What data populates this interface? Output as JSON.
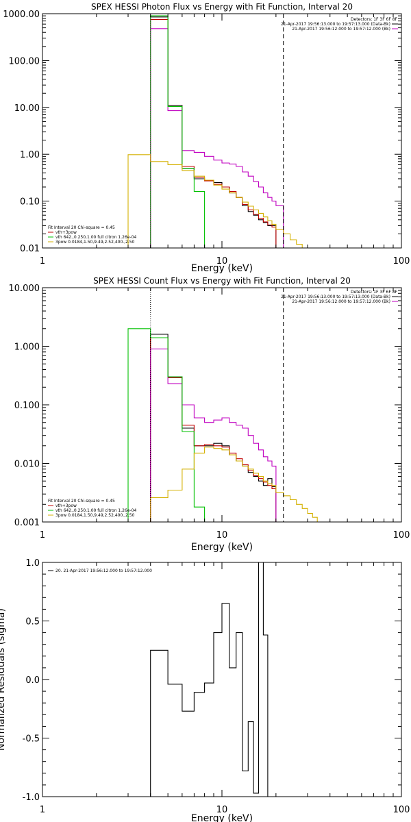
{
  "chart_data": [
    {
      "type": "line",
      "title": "SPEX HESSI Photon Flux vs Energy with Fit Function, Interval 20",
      "xlabel": "Energy (keV)",
      "ylabel": "",
      "xscale": "log",
      "yscale": "log",
      "xlim": [
        1,
        100
      ],
      "ylim": [
        0.01,
        1000
      ],
      "x_ticks": [
        1,
        10,
        100
      ],
      "x_tick_labels": [
        "1",
        "10",
        "100"
      ],
      "y_ticks": [
        0.01,
        0.1,
        1,
        10,
        100,
        1000
      ],
      "y_tick_labels": [
        "0.01",
        "0.10",
        "1.00",
        "10.00",
        "100.00",
        "1000.00"
      ],
      "info_text": [
        "Detectors: 1F 3F 6F 8F",
        "21-Apr-2017 19:56:13.000 to 19:57:13.000 (Data-Bk)",
        "21-Apr-2017 19:56:12.000 to 19:57:12.000 (Bk)"
      ],
      "legend_text": [
        "Fit Interval 20   Chi-square = 0.45",
        "vth+3pow",
        "vth 642.,0.250,1.00  full citron 1.26e-04",
        "3pow 0.0184,1.50,9.49,2.52,400.,2.50"
      ],
      "bin_edges": [
        3.0,
        4.0,
        5.0,
        6.0,
        7.0,
        8.0,
        9.0,
        10.0,
        11.0,
        12.0,
        13.0,
        14.0,
        15.0,
        16.0,
        17.0,
        18.0,
        19.0,
        20.0,
        22.0,
        24.0,
        26.0,
        28.0,
        30.0
      ],
      "vlines": [
        {
          "x": 4.0,
          "color": "#c000c0",
          "style": "dotted"
        },
        {
          "x": 22.0,
          "color": "#000000",
          "style": "dashed"
        }
      ],
      "series": [
        {
          "color": "#000000",
          "values": [
            null,
            850,
            11,
            0.5,
            0.3,
            0.28,
            0.25,
            0.2,
            0.15,
            0.12,
            0.08,
            0.06,
            0.05,
            0.04,
            0.035,
            0.03,
            0.03,
            null,
            null,
            null,
            null,
            null
          ]
        },
        {
          "color": "#c00000",
          "values": [
            null,
            750,
            10.5,
            0.55,
            0.32,
            0.27,
            0.23,
            0.2,
            0.16,
            0.12,
            0.085,
            0.065,
            0.052,
            0.043,
            0.036,
            0.031,
            0.028,
            null,
            null,
            null,
            null,
            null
          ]
        },
        {
          "color": "#c000c0",
          "values": [
            null,
            480,
            8.5,
            1.2,
            1.1,
            0.9,
            0.75,
            0.65,
            0.62,
            0.55,
            0.42,
            0.34,
            0.26,
            0.2,
            0.15,
            0.12,
            0.1,
            0.08,
            null,
            null,
            null,
            null
          ]
        },
        {
          "color": "#00c000",
          "values": [
            null,
            900,
            10.5,
            0.5,
            0.16,
            null,
            null,
            null,
            null,
            null,
            null,
            null,
            null,
            null,
            null,
            null,
            null,
            null,
            null,
            null,
            null,
            null
          ]
        },
        {
          "color": "#d4b000",
          "values": [
            0.98,
            0.7,
            0.6,
            0.45,
            0.34,
            0.28,
            0.22,
            0.18,
            0.15,
            0.12,
            0.095,
            0.078,
            0.065,
            0.055,
            0.046,
            0.038,
            0.032,
            0.025,
            0.02,
            0.015,
            0.012,
            0.01
          ]
        }
      ]
    },
    {
      "type": "line",
      "title": "SPEX HESSI Count Flux vs Energy with Fit Function, Interval 20",
      "xlabel": "Energy (keV)",
      "ylabel": "",
      "xscale": "log",
      "yscale": "log",
      "xlim": [
        1,
        100
      ],
      "ylim": [
        0.001,
        10
      ],
      "x_ticks": [
        1,
        10,
        100
      ],
      "x_tick_labels": [
        "1",
        "10",
        "100"
      ],
      "y_ticks": [
        0.001,
        0.01,
        0.1,
        1,
        10
      ],
      "y_tick_labels": [
        "0.001",
        "0.010",
        "0.100",
        "1.000",
        "10.000"
      ],
      "info_text": [
        "Detectors: 1F 3F 6F 8F",
        "21-Apr-2017 19:56:13.000 to 19:57:13.000 (Data-Bk)",
        "21-Apr-2017 19:56:12.000 to 19:57:12.000 (Bk)"
      ],
      "legend_text": [
        "Fit Interval 20   Chi-square = 0.45",
        "vth+3pow",
        "vth 642.,0.250,1.00  full citron 1.26e-04",
        "3pow 0.0184,1.50,9.49,2.52,400.,2.50"
      ],
      "bin_edges": [
        3.0,
        4.0,
        5.0,
        6.0,
        7.0,
        8.0,
        9.0,
        10.0,
        11.0,
        12.0,
        13.0,
        14.0,
        15.0,
        16.0,
        17.0,
        18.0,
        19.0,
        20.0,
        22.0,
        24.0,
        26.0,
        28.0,
        30.0,
        32.0,
        34.0,
        36.0
      ],
      "vlines": [
        {
          "x": 4.0,
          "color": "#000000",
          "style": "dotted"
        },
        {
          "x": 22.0,
          "color": "#000000",
          "style": "dashed"
        }
      ],
      "series": [
        {
          "color": "#000000",
          "values": [
            null,
            1.6,
            0.3,
            0.04,
            0.02,
            0.02,
            0.022,
            0.02,
            0.014,
            0.011,
            0.009,
            0.007,
            0.006,
            0.005,
            0.0042,
            0.0055,
            0.004,
            null,
            null,
            null,
            null,
            null,
            null,
            null,
            null
          ]
        },
        {
          "color": "#c00000",
          "values": [
            null,
            1.4,
            0.29,
            0.045,
            0.02,
            0.021,
            0.02,
            0.019,
            0.015,
            0.012,
            0.0095,
            0.0075,
            0.0062,
            0.0055,
            0.0048,
            0.0042,
            0.0037,
            null,
            null,
            null,
            null,
            null,
            null,
            null,
            null
          ]
        },
        {
          "color": "#c000c0",
          "values": [
            null,
            0.9,
            0.23,
            0.1,
            0.06,
            0.05,
            0.055,
            0.06,
            0.05,
            0.045,
            0.04,
            0.03,
            0.022,
            0.017,
            0.013,
            0.011,
            0.009,
            null,
            null,
            null,
            null,
            null,
            null,
            null,
            null
          ]
        },
        {
          "color": "#00c000",
          "values": [
            2.0,
            1.4,
            0.3,
            0.035,
            0.0018,
            null,
            null,
            null,
            null,
            null,
            null,
            null,
            null,
            null,
            null,
            null,
            null,
            null,
            null,
            null,
            null,
            null,
            null,
            null,
            null
          ]
        },
        {
          "color": "#d4b000",
          "values": [
            null,
            0.0026,
            0.0035,
            0.008,
            0.015,
            0.019,
            0.018,
            0.017,
            0.014,
            0.011,
            0.009,
            0.008,
            0.0068,
            0.006,
            0.005,
            0.0045,
            0.0042,
            0.0032,
            0.0028,
            0.0024,
            0.002,
            0.0017,
            0.0014,
            0.0012,
            0.001
          ]
        }
      ]
    },
    {
      "type": "line",
      "title": "",
      "xlabel": "Energy (keV)",
      "ylabel": "Normalized Residuals (sigma)",
      "xscale": "log",
      "yscale": "linear",
      "xlim": [
        1,
        100
      ],
      "ylim": [
        -1.0,
        1.0
      ],
      "x_ticks": [
        1,
        10,
        100
      ],
      "x_tick_labels": [
        "1",
        "10",
        "100"
      ],
      "y_ticks": [
        -1.0,
        -0.5,
        0.0,
        0.5,
        1.0
      ],
      "y_tick_labels": [
        "-1.0",
        "-0.5",
        "0.0",
        "0.5",
        "1.0"
      ],
      "legend_text": [
        "20. 21-Apr-2017 19:56:12.000 to 19:57:12.000"
      ],
      "bin_edges": [
        4.0,
        5.0,
        6.0,
        7.0,
        8.0,
        9.0,
        10.0,
        11.0,
        12.0,
        13.0,
        14.0,
        15.0,
        16.0,
        17.0,
        18.0,
        19.0,
        20.0,
        22.0
      ],
      "series": [
        {
          "color": "#000000",
          "values": [
            0.25,
            -0.04,
            -0.27,
            -0.11,
            -0.03,
            0.4,
            0.65,
            0.1,
            0.4,
            -0.78,
            -0.36,
            -0.97,
            1.0,
            0.38,
            null,
            null,
            null
          ]
        }
      ]
    }
  ]
}
